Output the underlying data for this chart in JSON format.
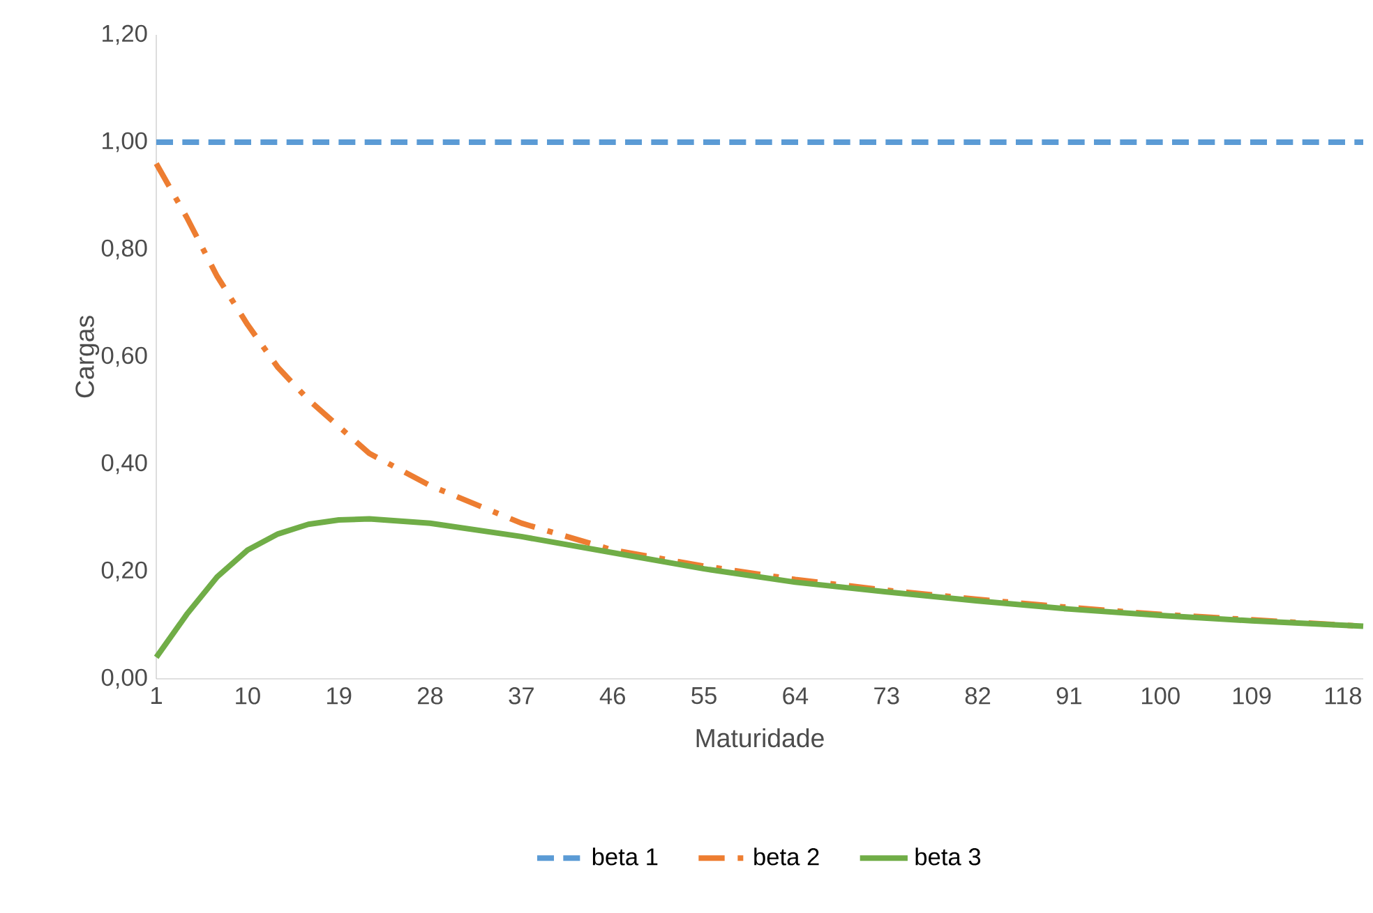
{
  "chart_data": {
    "type": "line",
    "xlabel": "Maturidade",
    "ylabel": "Cargas",
    "xlim": [
      1,
      120
    ],
    "xticks": [
      1,
      10,
      19,
      28,
      37,
      46,
      55,
      64,
      73,
      82,
      91,
      100,
      109,
      118
    ],
    "ylim": [
      0,
      1.2
    ],
    "yticks": [
      {
        "value": 0,
        "label": "0,00"
      },
      {
        "value": 0.2,
        "label": "0,20"
      },
      {
        "value": 0.4,
        "label": "0,40"
      },
      {
        "value": 0.6,
        "label": "0,60"
      },
      {
        "value": 0.8,
        "label": "0,80"
      },
      {
        "value": 1.0,
        "label": "1,00"
      },
      {
        "value": 1.2,
        "label": "1,20"
      }
    ],
    "grid": false,
    "legend": "bottom",
    "marker": "none",
    "series": [
      {
        "name": "beta  1",
        "color": "#5b9bd5",
        "line_style": "dashed",
        "x": [
          1,
          120
        ],
        "values": [
          1.0,
          1.0
        ]
      },
      {
        "name": "beta  2",
        "color": "#ed7d31",
        "line_style": "dashdot",
        "x": [
          1,
          4,
          7,
          10,
          13,
          16,
          19,
          22,
          28,
          37,
          46,
          55,
          64,
          73,
          82,
          91,
          100,
          109,
          120
        ],
        "values": [
          0.96,
          0.86,
          0.75,
          0.66,
          0.58,
          0.52,
          0.47,
          0.42,
          0.36,
          0.29,
          0.24,
          0.21,
          0.185,
          0.165,
          0.148,
          0.133,
          0.12,
          0.11,
          0.098
        ]
      },
      {
        "name": "beta  3",
        "color": "#70ad47",
        "line_style": "solid",
        "x": [
          1,
          4,
          7,
          10,
          13,
          16,
          19,
          22,
          28,
          37,
          46,
          55,
          64,
          73,
          82,
          91,
          100,
          109,
          120
        ],
        "values": [
          0.04,
          0.12,
          0.19,
          0.24,
          0.27,
          0.288,
          0.296,
          0.298,
          0.29,
          0.265,
          0.235,
          0.205,
          0.18,
          0.162,
          0.145,
          0.13,
          0.118,
          0.108,
          0.098
        ]
      }
    ]
  }
}
